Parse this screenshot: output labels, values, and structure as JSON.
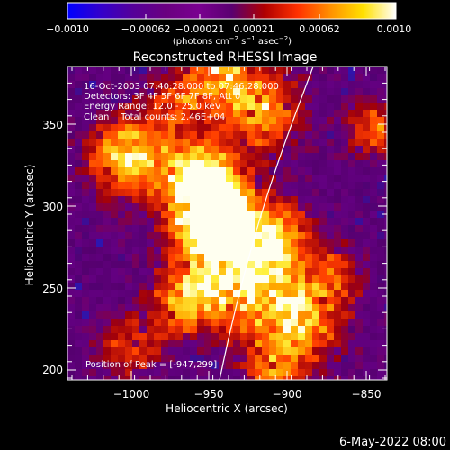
{
  "colorbar": {
    "tick_labels": [
      "−0.0010",
      "−0.00062",
      "−0.00021",
      "0.00021",
      "0.00062",
      "0.0010"
    ],
    "unit_parts": [
      "(photons cm",
      "−2",
      " s",
      "−1",
      " asec",
      "−2",
      ")"
    ],
    "colors": [
      "#0000ff",
      "#3300cc",
      "#550099",
      "#6a0080",
      "#7a0090",
      "#5a0070",
      "#b00000",
      "#ff3000",
      "#ff9000",
      "#ffe000",
      "#ffffff"
    ]
  },
  "title": "Reconstructed RHESSI Image",
  "info": {
    "time": "16-Oct-2003 07:40:28.000 to 07:46:28.000",
    "detectors": "Detectors: 3F 4F 5F 6F 7F 8F, Att 0",
    "energy": "Energy Range: 12.0 - 25.0 keV",
    "clean_total": "Clean    Total counts: 2.46E+04",
    "peak": "Position of Peak = [-947,299]"
  },
  "axes": {
    "xlabel": "Heliocentric X (arcsec)",
    "ylabel": "Heliocentric Y (arcsec)",
    "xticks": [
      "−1000",
      "−950",
      "−900",
      "−850"
    ],
    "yticks": [
      "200",
      "250",
      "300",
      "350"
    ]
  },
  "footer_date": "6-May-2022 08:00"
}
